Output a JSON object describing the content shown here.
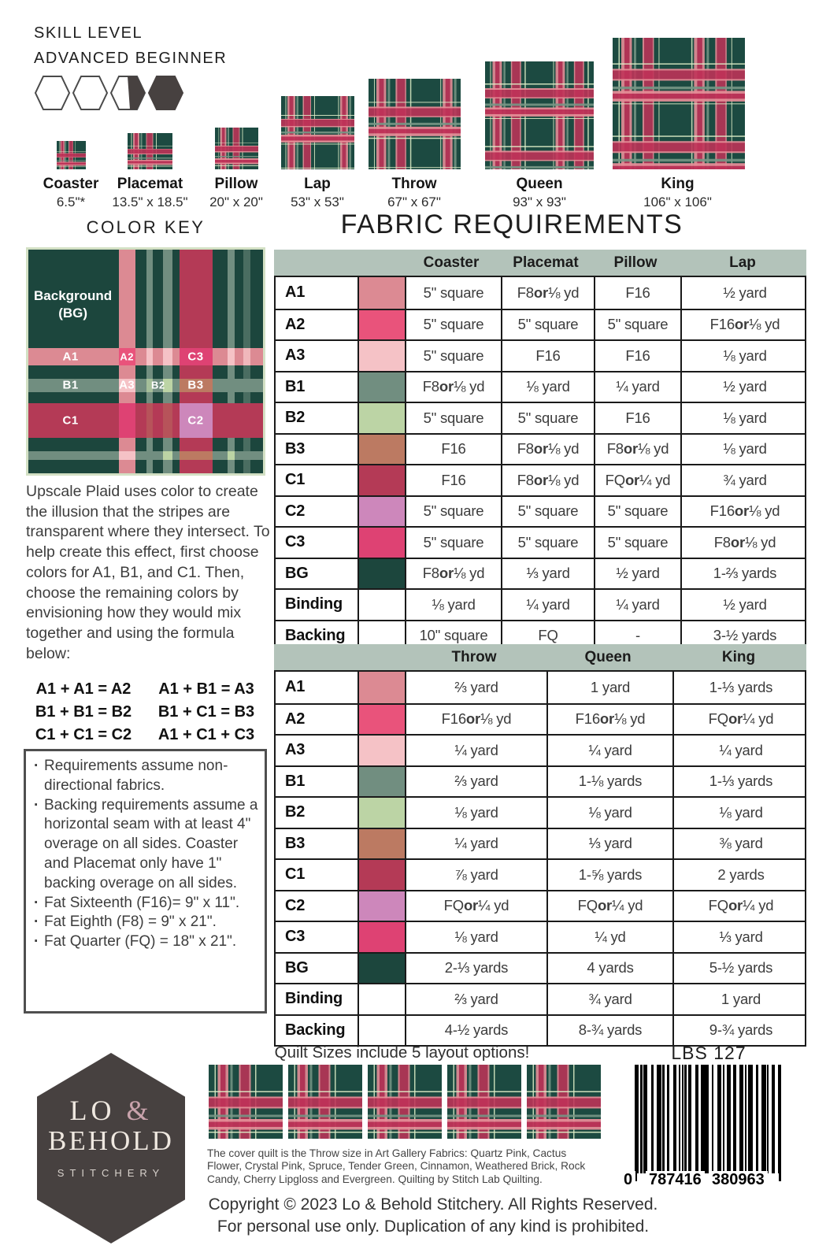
{
  "skill": {
    "title": "SKILL LEVEL",
    "subtitle": "ADVANCED BEGINNER",
    "level_hexagons": [
      "empty",
      "empty",
      "half",
      "full"
    ]
  },
  "sizes": [
    {
      "name": "Coaster",
      "dims": "6.5\"*"
    },
    {
      "name": "Placemat",
      "dims": "13.5\" x 18.5\""
    },
    {
      "name": "Pillow",
      "dims": "20\" x 20\""
    },
    {
      "name": "Lap",
      "dims": "53\" x 53\""
    },
    {
      "name": "Throw",
      "dims": "67\" x 67\""
    },
    {
      "name": "Queen",
      "dims": "93\" x 93\""
    },
    {
      "name": "King",
      "dims": "106\" x 106\""
    }
  ],
  "color_key": {
    "title": "COLOR KEY",
    "labels": {
      "bg": "Background (BG)",
      "a1": "A1",
      "a2": "A2",
      "a3": "A3",
      "b1": "B1",
      "b2": "B2",
      "b3": "B3",
      "c1": "C1",
      "c2": "C2",
      "c3": "C3"
    },
    "colors": {
      "bg": "#1C463D",
      "a1": "#DC8A93",
      "a2": "#E9537B",
      "a3": "#F5C2C6",
      "b1": "#718E80",
      "b2": "#BCD4A5",
      "b3": "#BC7A62",
      "c1": "#B43A56",
      "c2": "#CD87BB",
      "c3": "#DE4273"
    }
  },
  "fabric": {
    "title": "FABRIC REQUIREMENTS",
    "table1": {
      "columns": [
        "Coaster",
        "Placemat",
        "Pillow",
        "Lap"
      ],
      "rows": [
        {
          "label": "A1",
          "swatch": "#DC8A93",
          "cells": [
            "5\" square",
            "F8 or ⅛ yd",
            "F16",
            "½ yard"
          ]
        },
        {
          "label": "A2",
          "swatch": "#E9537B",
          "cells": [
            "5\" square",
            "5\" square",
            "5\" square",
            "F16 or ⅛ yd"
          ]
        },
        {
          "label": "A3",
          "swatch": "#F5C2C6",
          "cells": [
            "5\" square",
            "F16",
            "F16",
            "⅛ yard"
          ]
        },
        {
          "label": "B1",
          "swatch": "#718E80",
          "cells": [
            "F8 or ⅛ yd",
            "⅛ yard",
            "¼ yard",
            "½ yard"
          ]
        },
        {
          "label": "B2",
          "swatch": "#BCD4A5",
          "cells": [
            "5\" square",
            "5\" square",
            "F16",
            "⅛ yard"
          ]
        },
        {
          "label": "B3",
          "swatch": "#BC7A62",
          "cells": [
            "F16",
            "F8 or ⅛ yd",
            "F8 or ⅛ yd",
            "⅛ yard"
          ]
        },
        {
          "label": "C1",
          "swatch": "#B43A56",
          "cells": [
            "F16",
            "F8 or ⅛ yd",
            "FQ or ¼ yd",
            "¾ yard"
          ]
        },
        {
          "label": "C2",
          "swatch": "#CD87BB",
          "cells": [
            "5\" square",
            "5\" square",
            "5\" square",
            "F16 or ⅛ yd"
          ]
        },
        {
          "label": "C3",
          "swatch": "#DE4273",
          "cells": [
            "5\" square",
            "5\" square",
            "5\" square",
            "F8 or ⅛ yd"
          ]
        },
        {
          "label": "BG",
          "swatch": "#1C463D",
          "cells": [
            "F8 or ⅛ yd",
            "⅓ yard",
            "½ yard",
            "1-⅔ yards"
          ]
        },
        {
          "label": "Binding",
          "swatch": null,
          "cells": [
            "⅛ yard",
            "¼ yard",
            "¼ yard",
            "½ yard"
          ]
        },
        {
          "label": "Backing",
          "swatch": null,
          "cells": [
            "10\" square",
            "FQ",
            "-",
            "3-½ yards"
          ]
        }
      ]
    },
    "table2": {
      "columns": [
        "Throw",
        "Queen",
        "King"
      ],
      "rows": [
        {
          "label": "A1",
          "swatch": "#DC8A93",
          "cells": [
            "⅔ yard",
            "1 yard",
            "1-⅓ yards"
          ]
        },
        {
          "label": "A2",
          "swatch": "#E9537B",
          "cells": [
            "F16 or ⅛ yd",
            "F16 or ⅛ yd",
            "FQ or ¼ yd"
          ]
        },
        {
          "label": "A3",
          "swatch": "#F5C2C6",
          "cells": [
            "¼ yard",
            "¼ yard",
            "¼ yard"
          ]
        },
        {
          "label": "B1",
          "swatch": "#718E80",
          "cells": [
            "⅔ yard",
            "1-⅛ yards",
            "1-⅓ yards"
          ]
        },
        {
          "label": "B2",
          "swatch": "#BCD4A5",
          "cells": [
            "⅛ yard",
            "⅛ yard",
            "⅛ yard"
          ]
        },
        {
          "label": "B3",
          "swatch": "#BC7A62",
          "cells": [
            "¼ yard",
            "⅓ yard",
            "⅜ yard"
          ]
        },
        {
          "label": "C1",
          "swatch": "#B43A56",
          "cells": [
            "⅞ yard",
            "1-⅝ yards",
            "2 yards"
          ]
        },
        {
          "label": "C2",
          "swatch": "#CD87BB",
          "cells": [
            "FQ or ¼ yd",
            "FQ or ¼ yd",
            "FQ or ¼ yd"
          ]
        },
        {
          "label": "C3",
          "swatch": "#DE4273",
          "cells": [
            "⅛ yard",
            "¼ yd",
            "⅓ yard"
          ]
        },
        {
          "label": "BG",
          "swatch": "#1C463D",
          "cells": [
            "2-⅓ yards",
            "4 yards",
            "5-½ yards"
          ]
        },
        {
          "label": "Binding",
          "swatch": null,
          "cells": [
            "⅔ yard",
            "¾ yard",
            "1 yard"
          ]
        },
        {
          "label": "Backing",
          "swatch": null,
          "cells": [
            "4-½ yards",
            "8-¾ yards",
            "9-¾ yards"
          ]
        }
      ]
    }
  },
  "description": "Upscale Plaid uses color to create the illusion that the stripes are transparent where they intersect. To help create this effect, first choose colors for A1, B1, and C1. Then, choose the remaining colors by envisioning how they would mix together and using the formula below:",
  "formulas": [
    "A1 + A1 = A2",
    "A1 + B1 = A3",
    "B1 + B1 = B2",
    "B1 + C1 = B3",
    "C1 + C1 = C2",
    "A1 + C1 + C3"
  ],
  "notes": [
    "Requirements assume non-directional fabrics.",
    "Backing requirements assume a horizontal seam with at least 4\" overage on all sides. Coaster and Placemat only have 1\" backing overage on all sides.",
    "Fat Sixteenth (F16)= 9\" x 11\".",
    "Fat Eighth (F8) = 9\" x 21\".",
    "Fat Quarter (FQ) = 18\" x 21\"."
  ],
  "footer": {
    "logo": {
      "lo": "LO ",
      "amp": "&",
      "behold": "BEHOLD",
      "stitchery": "STITCHERY"
    },
    "quilt_sizes_note": "Quilt Sizes include 5 layout options!",
    "cover_note": "The cover quilt is the Throw size in Art Gallery Fabrics: Quartz Pink, Cactus Flower, Crystal Pink, Spruce, Tender Green, Cinnamon, Weathered Brick, Rock Candy, Cherry Lipgloss and Evergreen. Quilting by Stitch Lab Quilting.",
    "sku": "LBS 127",
    "barcode": {
      "lead": "0",
      "group1": "787416",
      "group2": "380963"
    },
    "copyright_line1": "Copyright © 2023 Lo & Behold Stitchery. All Rights Reserved.",
    "copyright_line2": "For personal use only. Duplication of any kind is prohibited."
  }
}
